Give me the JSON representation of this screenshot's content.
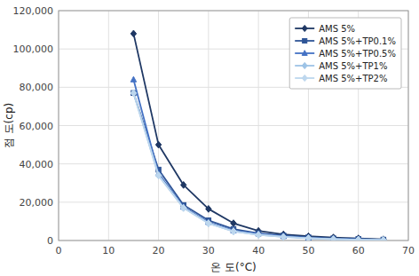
{
  "chart_data": {
    "type": "line",
    "xlabel": "온 도(°C)",
    "ylabel": "점 도(cp)",
    "x": [
      15,
      20,
      25,
      30,
      35,
      40,
      45,
      50,
      55,
      60,
      65
    ],
    "series": [
      {
        "name": "AMS 5%",
        "color": "#1F3864",
        "marker": "diamond",
        "values": [
          108000,
          50000,
          29000,
          16500,
          9000,
          5000,
          3200,
          2200,
          1600,
          1100,
          600
        ]
      },
      {
        "name": "AMS 5%+TP0.1%",
        "color": "#2F5597",
        "marker": "square",
        "values": [
          77000,
          37000,
          18500,
          10500,
          6000,
          3800,
          2600,
          1700,
          1100,
          800,
          450
        ]
      },
      {
        "name": "AMS 5%+TP0.5%",
        "color": "#4472C4",
        "marker": "triangle",
        "values": [
          84000,
          35000,
          17500,
          9500,
          5200,
          3500,
          2200,
          1400,
          900,
          600,
          350
        ]
      },
      {
        "name": "AMS 5%+TP1%",
        "color": "#9DC3E6",
        "marker": "diamond",
        "values": [
          77000,
          34000,
          17000,
          9000,
          4800,
          3000,
          1900,
          1200,
          700,
          450,
          250
        ]
      },
      {
        "name": "AMS 5%+TP2%",
        "color": "#BDD7EE",
        "marker": "diamond",
        "values": [
          77000,
          34000,
          17000,
          9000,
          4800,
          3000,
          1900,
          1200,
          700,
          450,
          250
        ]
      }
    ],
    "xlim": [
      0,
      70
    ],
    "ylim": [
      0,
      120000
    ],
    "xticks": [
      0,
      10,
      20,
      30,
      40,
      50,
      60,
      70
    ],
    "yticks": [
      0,
      {
        "value": 20000,
        "label": "20,000"
      },
      {
        "value": 40000,
        "label": "40,000"
      },
      {
        "value": 60000,
        "label": "60,000"
      },
      {
        "value": 80000,
        "label": "80,000"
      },
      {
        "value": 100000,
        "label": "100,000"
      },
      {
        "value": 120000,
        "label": "120,000"
      }
    ],
    "grid": true,
    "legend": "upper right"
  }
}
